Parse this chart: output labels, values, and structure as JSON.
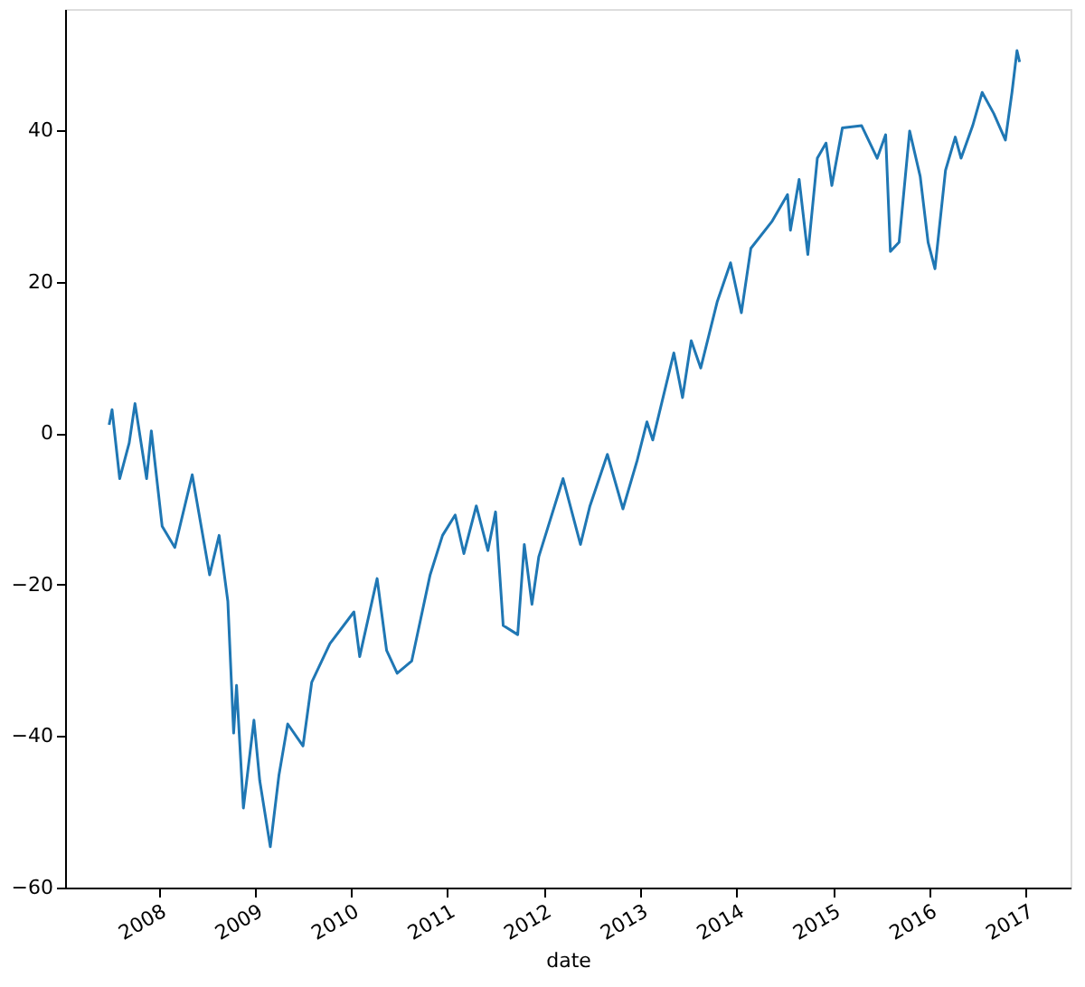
{
  "chart_data": {
    "type": "line",
    "xlabel": "date",
    "x": [
      "2007-06-28",
      "2007-07-09",
      "2007-08-07",
      "2007-09-12",
      "2007-10-04",
      "2007-11-17",
      "2007-12-05",
      "2008-01-15",
      "2008-03-03",
      "2008-05-08",
      "2008-07-13",
      "2008-08-18",
      "2008-09-20",
      "2008-10-12",
      "2008-10-23",
      "2008-11-18",
      "2008-12-28",
      "2009-01-19",
      "2009-02-28",
      "2009-04-02",
      "2009-05-05",
      "2009-07-02",
      "2009-08-04",
      "2009-10-12",
      "2010-01-11",
      "2010-02-02",
      "2010-04-09",
      "2010-05-15",
      "2010-06-24",
      "2010-08-18",
      "2010-10-27",
      "2010-12-13",
      "2011-01-30",
      "2011-03-04",
      "2011-04-20",
      "2011-06-03",
      "2011-07-02",
      "2011-07-31",
      "2011-09-24",
      "2011-10-19",
      "2011-11-17",
      "2011-12-13",
      "2012-03-14",
      "2012-05-19",
      "2012-06-24",
      "2012-08-29",
      "2012-10-27",
      "2012-12-20",
      "2013-01-26",
      "2013-02-17",
      "2013-05-08",
      "2013-06-10",
      "2013-07-13",
      "2013-08-18",
      "2013-10-19",
      "2013-12-09",
      "2014-01-19",
      "2014-02-24",
      "2014-05-16",
      "2014-07-13",
      "2014-07-24",
      "2014-08-26",
      "2014-09-28",
      "2014-11-03",
      "2014-12-06",
      "2014-12-28",
      "2015-02-06",
      "2015-04-20",
      "2015-06-18",
      "2015-07-20",
      "2015-08-07",
      "2015-09-09",
      "2015-10-19",
      "2015-11-28",
      "2015-12-28",
      "2016-01-23",
      "2016-03-03",
      "2016-04-09",
      "2016-05-01",
      "2016-06-14",
      "2016-07-20",
      "2016-09-02",
      "2016-10-16",
      "2016-11-10",
      "2016-11-29",
      "2016-12-09"
    ],
    "series": [
      {
        "color": "#1f77b4",
        "values": [
          1.1,
          3.1,
          -6.0,
          -1.3,
          3.9,
          -6.0,
          0.3,
          -12.3,
          -15.1,
          -5.5,
          -18.7,
          -13.5,
          -22.2,
          -39.6,
          -33.3,
          -49.5,
          -37.9,
          -45.9,
          -54.6,
          -45.1,
          -38.4,
          -41.3,
          -32.9,
          -27.8,
          -23.6,
          -29.5,
          -19.2,
          -28.7,
          -31.7,
          -30.1,
          -18.7,
          -13.5,
          -10.8,
          -15.9,
          -9.6,
          -15.5,
          -10.4,
          -25.4,
          -26.6,
          -14.7,
          -22.6,
          -16.3,
          -6.0,
          -14.7,
          -9.6,
          -2.8,
          -10.0,
          -3.6,
          1.5,
          -0.9,
          10.6,
          4.7,
          12.2,
          8.6,
          17.3,
          22.5,
          15.9,
          24.4,
          28.0,
          31.5,
          26.8,
          33.5,
          23.6,
          36.3,
          38.3,
          32.7,
          40.3,
          40.6,
          36.3,
          39.4,
          24.0,
          25.2,
          39.9,
          33.9,
          25.2,
          21.7,
          34.7,
          39.1,
          36.3,
          40.6,
          45.0,
          42.2,
          38.7,
          45.0,
          50.5,
          49.0
        ]
      }
    ],
    "xlim": [
      "2007-01-12",
      "2017-06-20"
    ],
    "xticks": [
      "2008",
      "2009",
      "2010",
      "2011",
      "2012",
      "2013",
      "2014",
      "2015",
      "2016",
      "2017"
    ],
    "ylim": [
      -60,
      56
    ],
    "yticks": [
      {
        "value": -60,
        "label": "−60"
      },
      {
        "value": -40,
        "label": "−40"
      },
      {
        "value": -20,
        "label": "−20"
      },
      0,
      20,
      40
    ],
    "grid": false,
    "marker": "none",
    "line_style": "solid"
  }
}
